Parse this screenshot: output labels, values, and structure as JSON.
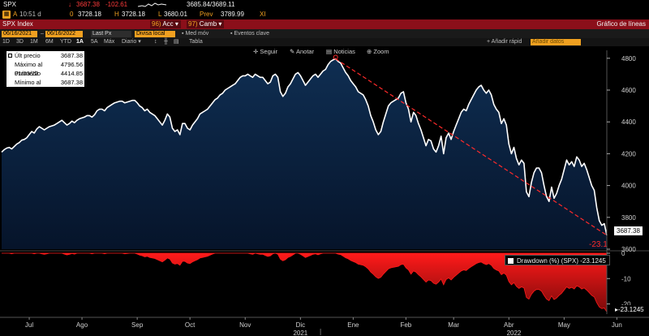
{
  "header": {
    "ticker": "SPX",
    "arrow_down": "↓",
    "last_price": "3687.38",
    "change": "-102.61",
    "bid_ask": "3685.84/3689.11",
    "row2_a": "A",
    "time": "10:51 d",
    "open_label": "0",
    "open": "3728.18",
    "high_label": "H",
    "high": "3728.18",
    "low_label": "L",
    "low": "3680.01",
    "prev_label": "Prev",
    "prev": "3789.99",
    "exch": "XI"
  },
  "toolbar": {
    "index_name": "SPX Index",
    "acc_label": "Acc",
    "camb_label": "Camb",
    "chart_type": "Gráfico de líneas",
    "date_from": "06/16/2021",
    "date_to": "06/16/2022",
    "price_field": "Last Px",
    "currency_field": "Divisa local",
    "med_mov": "Med móv",
    "eventos": "Eventos clave",
    "add_label": "Añadir rápid",
    "add_data": "Añadir datos",
    "ranges": [
      "1D",
      "3D",
      "1M",
      "6M",
      "YTD",
      "1A",
      "5A",
      "Máx",
      "Diario",
      "Tabla"
    ],
    "seguir": "Seguir",
    "anotar": "Anotar",
    "noticias": "Noticias",
    "zoom": "Zoom"
  },
  "legend": {
    "rows": [
      {
        "label": "Últ precio",
        "value": "3687.38"
      },
      {
        "label": "Máximo al 01/03/22",
        "value": "4796.56"
      },
      {
        "label": "Promedio",
        "value": "4414.85"
      },
      {
        "label": "Mínimo al 06/16/22",
        "value": "3687.38"
      }
    ]
  },
  "annotations": {
    "drawdown_pct_label": "-23.1",
    "price_label": "3687.38",
    "drawdown_legend": "Drawdown (%) (SPX) -23.1245",
    "drawdown_value_label": "-23.1245"
  },
  "colors": {
    "price_line": "#ffffff",
    "price_fill_top": "#0d2a4a",
    "drawdown": "#ff1a1a",
    "trend_line": "#ff2a2a",
    "toolbar_red": "#8b0f1a",
    "accent_orange": "#f0a020"
  },
  "chart_data": [
    {
      "type": "area",
      "title": "SPX Index - Gráfico de líneas",
      "series_name": "Último precio",
      "ylim": [
        3600,
        4850
      ],
      "y_ticks": [
        3600,
        3800,
        4000,
        4200,
        4400,
        4600,
        4800
      ],
      "x_tick_labels": [
        "Jul",
        "Ago",
        "Sep",
        "Oct",
        "Nov",
        "Dic",
        "Ene",
        "Feb",
        "Mar",
        "Abr",
        "May",
        "Jun"
      ],
      "x_tick_index": [
        11,
        32,
        54,
        75,
        97,
        119,
        140,
        161,
        180,
        202,
        224,
        245
      ],
      "year_labels": [
        {
          "label": "2021",
          "index": 119
        },
        {
          "label": "2022",
          "index": 204
        }
      ],
      "values": [
        4210,
        4225,
        4235,
        4240,
        4230,
        4245,
        4260,
        4270,
        4285,
        4290,
        4300,
        4320,
        4340,
        4330,
        4355,
        4370,
        4360,
        4350,
        4360,
        4370,
        4375,
        4380,
        4390,
        4400,
        4410,
        4395,
        4380,
        4390,
        4405,
        4395,
        4410,
        4420,
        4425,
        4430,
        4440,
        4440,
        4430,
        4445,
        4470,
        4480,
        4480,
        4470,
        4490,
        4500,
        4510,
        4520,
        4525,
        4530,
        4530,
        4520,
        4525,
        4530,
        4535,
        4535,
        4520,
        4500,
        4490,
        4470,
        4480,
        4460,
        4450,
        4440,
        4420,
        4400,
        4380,
        4410,
        4450,
        4430,
        4360,
        4340,
        4350,
        4320,
        4390,
        4390,
        4360,
        4350,
        4380,
        4400,
        4420,
        4450,
        4460,
        4470,
        4480,
        4500,
        4520,
        4540,
        4550,
        4570,
        4580,
        4600,
        4610,
        4620,
        4630,
        4640,
        4660,
        4680,
        4690,
        4690,
        4700,
        4690,
        4680,
        4700,
        4690,
        4680,
        4680,
        4660,
        4640,
        4650,
        4690,
        4700,
        4680,
        4590,
        4560,
        4580,
        4620,
        4640,
        4670,
        4700,
        4710,
        4690,
        4660,
        4630,
        4650,
        4670,
        4690,
        4700,
        4680,
        4700,
        4720,
        4730,
        4760,
        4780,
        4790,
        4796.56,
        4780,
        4770,
        4740,
        4710,
        4690,
        4660,
        4640,
        4620,
        4590,
        4580,
        4570,
        4540,
        4500,
        4440,
        4400,
        4350,
        4320,
        4340,
        4400,
        4450,
        4500,
        4520,
        4530,
        4540,
        4550,
        4580,
        4590,
        4520,
        4480,
        4400,
        4460,
        4440,
        4390,
        4350,
        4300,
        4250,
        4290,
        4280,
        4230,
        4210,
        4250,
        4310,
        4200,
        4300,
        4330,
        4290,
        4340,
        4380,
        4420,
        4460,
        4480,
        4470,
        4510,
        4540,
        4570,
        4600,
        4620,
        4630,
        4600,
        4580,
        4600,
        4570,
        4510,
        4480,
        4460,
        4390,
        4420,
        4380,
        4260,
        4200,
        4240,
        4170,
        4130,
        4160,
        4140,
        3960,
        3930,
        4020,
        4080,
        4110,
        4110,
        4080,
        4000,
        3930,
        3900,
        3990,
        3920,
        3950,
        4000,
        4040,
        4100,
        4160,
        4130,
        4150,
        4120,
        4180,
        4160,
        4120,
        4140,
        4100,
        4050,
        4000,
        3970,
        3860,
        3780,
        3750,
        3760,
        3687.38
      ]
    },
    {
      "type": "area",
      "title": "Drawdown (%) (SPX)",
      "series_name": "Drawdown (%) (SPX)",
      "ylim": [
        -24,
        0
      ],
      "y_ticks": [
        0,
        -10,
        -20
      ],
      "last_value": -23.1245
    }
  ]
}
